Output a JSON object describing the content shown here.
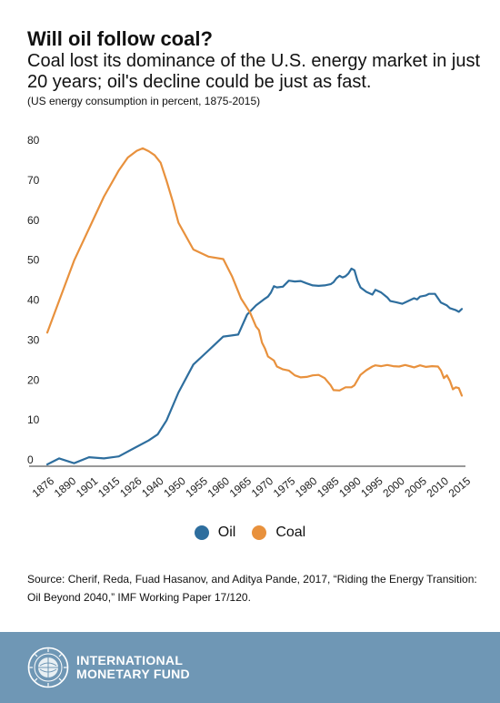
{
  "header": {
    "title": "Will oil follow coal?",
    "subtitle": "Coal lost its dominance of the U.S. energy market in just 20 years; oil's decline could be just as fast.",
    "note": "(US energy consumption in percent, 1875-2015)"
  },
  "source": "Source: Cherif, Reda, Fuad Hasanov, and Aditya Pande, 2017, “Riding the Energy Transition: Oil Beyond 2040,” IMF Working Paper 17/120.",
  "footer": {
    "org_line1": "INTERNATIONAL",
    "org_line2": "MONETARY FUND"
  },
  "colors": {
    "oil": "#2e6e9e",
    "coal": "#e8913d",
    "axis": "#333333",
    "footer": "#6f97b5"
  },
  "chart_data": {
    "type": "line",
    "xlim": [
      1876,
      2015
    ],
    "ylim": [
      0,
      80
    ],
    "y_ticks": [
      0,
      10,
      20,
      30,
      40,
      50,
      60,
      70,
      80
    ],
    "x_tick_labels": [
      "1876",
      "1890",
      "1901",
      "1915",
      "1926",
      "1940",
      "1950",
      "1955",
      "1960",
      "1965",
      "1970",
      "1975",
      "1980",
      "1985",
      "1990",
      "1995",
      "2000",
      "2005",
      "2010",
      "2015"
    ],
    "grid": false,
    "legend": "bottom-center",
    "series": [
      {
        "name": "Oil",
        "points": [
          [
            1876,
            0
          ],
          [
            1880,
            1.5
          ],
          [
            1885,
            0.3
          ],
          [
            1890,
            1.8
          ],
          [
            1895,
            1.5
          ],
          [
            1900,
            2.0
          ],
          [
            1905,
            4.0
          ],
          [
            1910,
            6.0
          ],
          [
            1913,
            7.5
          ],
          [
            1916,
            11
          ],
          [
            1920,
            18
          ],
          [
            1925,
            25
          ],
          [
            1930,
            28.5
          ],
          [
            1935,
            32
          ],
          [
            1940,
            32.5
          ],
          [
            1943,
            37.5
          ],
          [
            1946,
            39.8
          ],
          [
            1949,
            41.5
          ],
          [
            1950,
            42
          ],
          [
            1951,
            43
          ],
          [
            1952,
            44.6
          ],
          [
            1953,
            44.3
          ],
          [
            1955,
            44.5
          ],
          [
            1957,
            46
          ],
          [
            1959,
            45.8
          ],
          [
            1961,
            45.9
          ],
          [
            1963,
            45.3
          ],
          [
            1965,
            44.8
          ],
          [
            1967,
            44.7
          ],
          [
            1969,
            44.8
          ],
          [
            1971,
            45.1
          ],
          [
            1972,
            45.6
          ],
          [
            1973,
            46.6
          ],
          [
            1974,
            47.2
          ],
          [
            1975,
            46.8
          ],
          [
            1976,
            47.1
          ],
          [
            1977,
            47.8
          ],
          [
            1978,
            49.0
          ],
          [
            1979,
            48.6
          ],
          [
            1980,
            46
          ],
          [
            1981,
            44.3
          ],
          [
            1983,
            43.2
          ],
          [
            1985,
            42.5
          ],
          [
            1986,
            43.7
          ],
          [
            1988,
            43
          ],
          [
            1990,
            41.8
          ],
          [
            1991,
            40.9
          ],
          [
            1993,
            40.6
          ],
          [
            1995,
            40.2
          ],
          [
            1997,
            40.9
          ],
          [
            1999,
            41.6
          ],
          [
            2000,
            41.3
          ],
          [
            2001,
            42
          ],
          [
            2003,
            42.3
          ],
          [
            2004,
            42.7
          ],
          [
            2006,
            42.7
          ],
          [
            2008,
            40.5
          ],
          [
            2010,
            39.8
          ],
          [
            2011,
            39.1
          ],
          [
            2013,
            38.6
          ],
          [
            2014,
            38.2
          ],
          [
            2015,
            38.9
          ]
        ]
      },
      {
        "name": "Coal",
        "points": [
          [
            1876,
            33
          ],
          [
            1880,
            41
          ],
          [
            1885,
            51
          ],
          [
            1890,
            59
          ],
          [
            1895,
            67
          ],
          [
            1900,
            73.6
          ],
          [
            1903,
            76.8
          ],
          [
            1906,
            78.5
          ],
          [
            1908,
            79.1
          ],
          [
            1910,
            78.4
          ],
          [
            1912,
            77.4
          ],
          [
            1914,
            75.5
          ],
          [
            1916,
            71
          ],
          [
            1918,
            66
          ],
          [
            1920,
            60.5
          ],
          [
            1925,
            53.8
          ],
          [
            1930,
            52
          ],
          [
            1935,
            51.4
          ],
          [
            1938,
            47
          ],
          [
            1941,
            41.5
          ],
          [
            1944,
            38
          ],
          [
            1946,
            34.5
          ],
          [
            1947,
            33.6
          ],
          [
            1948,
            30.5
          ],
          [
            1949,
            29
          ],
          [
            1950,
            27
          ],
          [
            1952,
            26
          ],
          [
            1953,
            24.5
          ],
          [
            1955,
            23.8
          ],
          [
            1957,
            23.5
          ],
          [
            1959,
            22.3
          ],
          [
            1961,
            21.8
          ],
          [
            1963,
            21.9
          ],
          [
            1965,
            22.3
          ],
          [
            1967,
            22.4
          ],
          [
            1969,
            21.6
          ],
          [
            1971,
            19.8
          ],
          [
            1972,
            18.6
          ],
          [
            1974,
            18.5
          ],
          [
            1976,
            19.3
          ],
          [
            1978,
            19.3
          ],
          [
            1979,
            19.8
          ],
          [
            1981,
            22.4
          ],
          [
            1983,
            23.6
          ],
          [
            1985,
            24.5
          ],
          [
            1986,
            24.8
          ],
          [
            1988,
            24.6
          ],
          [
            1990,
            24.9
          ],
          [
            1992,
            24.6
          ],
          [
            1994,
            24.5
          ],
          [
            1996,
            24.9
          ],
          [
            1998,
            24.5
          ],
          [
            1999,
            24.3
          ],
          [
            2001,
            24.8
          ],
          [
            2003,
            24.4
          ],
          [
            2005,
            24.6
          ],
          [
            2007,
            24.5
          ],
          [
            2008,
            23.5
          ],
          [
            2009,
            21.6
          ],
          [
            2010,
            22.3
          ],
          [
            2011,
            20.9
          ],
          [
            2012,
            18.8
          ],
          [
            2013,
            19.3
          ],
          [
            2014,
            19.1
          ],
          [
            2015,
            17.2
          ]
        ]
      }
    ]
  }
}
